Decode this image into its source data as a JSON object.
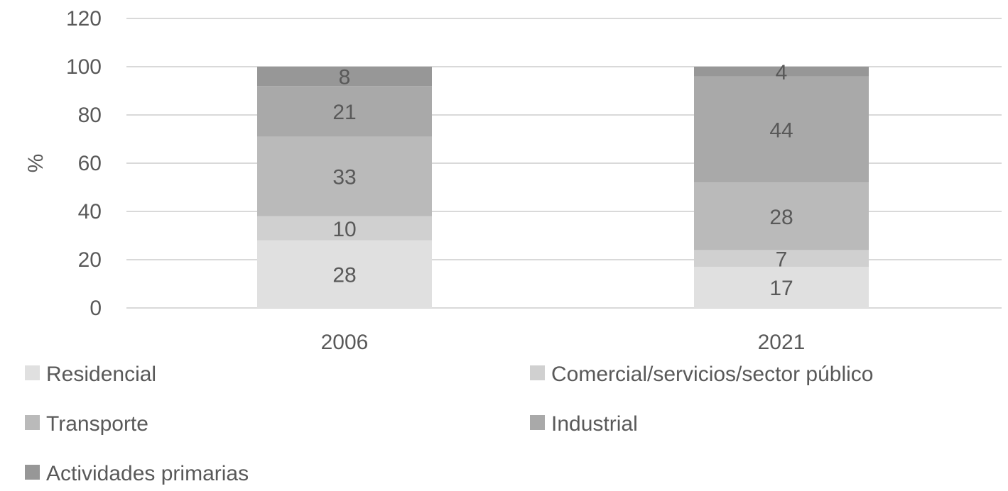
{
  "chart_data": {
    "type": "bar",
    "stacked": true,
    "categories": [
      "2006",
      "2021"
    ],
    "series": [
      {
        "name": "Residencial",
        "values": [
          28,
          17
        ],
        "color": "#e0e0e0"
      },
      {
        "name": "Comercial/servicios/sector público",
        "values": [
          10,
          7
        ],
        "color": "#d0d0d0"
      },
      {
        "name": "Transporte",
        "values": [
          33,
          28
        ],
        "color": "#bababa"
      },
      {
        "name": "Industrial",
        "values": [
          21,
          44
        ],
        "color": "#a9a9a9"
      },
      {
        "name": "Actividades primarias",
        "values": [
          8,
          4
        ],
        "color": "#979797"
      }
    ],
    "title": "",
    "xlabel": "",
    "ylabel": "%",
    "ylim": [
      0,
      120
    ],
    "yticks": [
      0,
      20,
      40,
      60,
      80,
      100,
      120
    ],
    "grid": true,
    "legend_position": "bottom",
    "data_labels": true
  },
  "colors": {
    "gridline": "#d9d9d9",
    "text": "#595959"
  }
}
